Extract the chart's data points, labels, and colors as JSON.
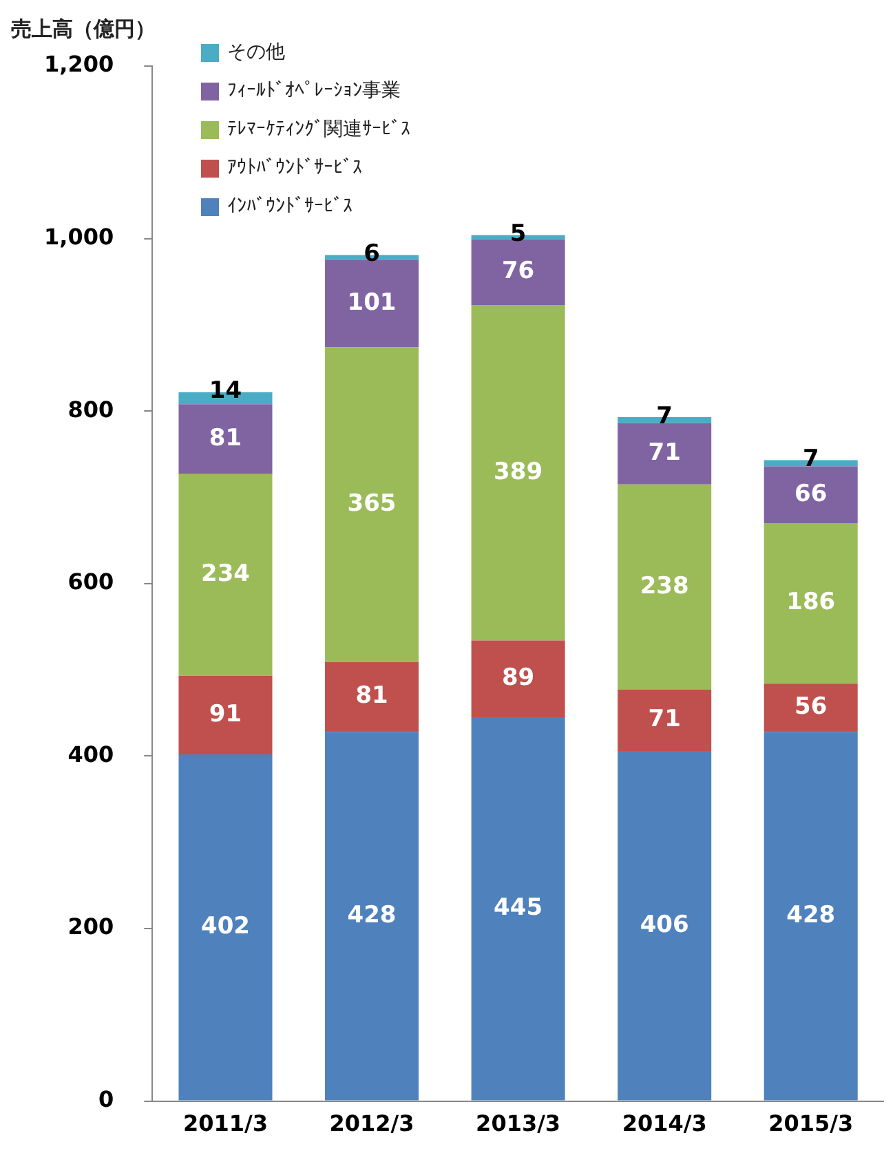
{
  "chart_data": {
    "type": "bar",
    "stacked": true,
    "ylabel": "売上高（億円）",
    "categories": [
      "2011/3",
      "2012/3",
      "2013/3",
      "2014/3",
      "2015/3"
    ],
    "series": [
      {
        "name": "ｲﾝﾊﾞｳﾝﾄﾞｻｰﾋﾞｽ",
        "color": "#4f81bd",
        "values": [
          402,
          428,
          445,
          406,
          428
        ]
      },
      {
        "name": "ｱｳﾄﾊﾞｳﾝﾄﾞｻｰﾋﾞｽ",
        "color": "#c0504d",
        "values": [
          91,
          81,
          89,
          71,
          56
        ]
      },
      {
        "name": "ﾃﾚﾏｰｹﾃｨﾝｸﾞ関連ｻｰﾋﾞｽ",
        "color": "#9bbb59",
        "values": [
          234,
          365,
          389,
          238,
          186
        ]
      },
      {
        "name": "ﾌｨｰﾙﾄﾞｵﾍﾟﾚｰｼｮﾝ事業",
        "color": "#8064a2",
        "values": [
          81,
          101,
          76,
          71,
          66
        ]
      },
      {
        "name": "その他",
        "color": "#4bacc6",
        "values": [
          14,
          6,
          5,
          7,
          7
        ]
      }
    ],
    "ylim": [
      0,
      1200
    ],
    "yticks": [
      0,
      {
        "value": 200,
        "label": "200"
      },
      {
        "value": 400,
        "label": "400"
      },
      {
        "value": 600,
        "label": "600"
      },
      {
        "value": 800,
        "label": "800"
      },
      {
        "value": 1000,
        "label": "1,000"
      },
      {
        "value": 1200,
        "label": "1,200"
      }
    ],
    "grid": false,
    "legend": "top left",
    "data_labels": true
  }
}
